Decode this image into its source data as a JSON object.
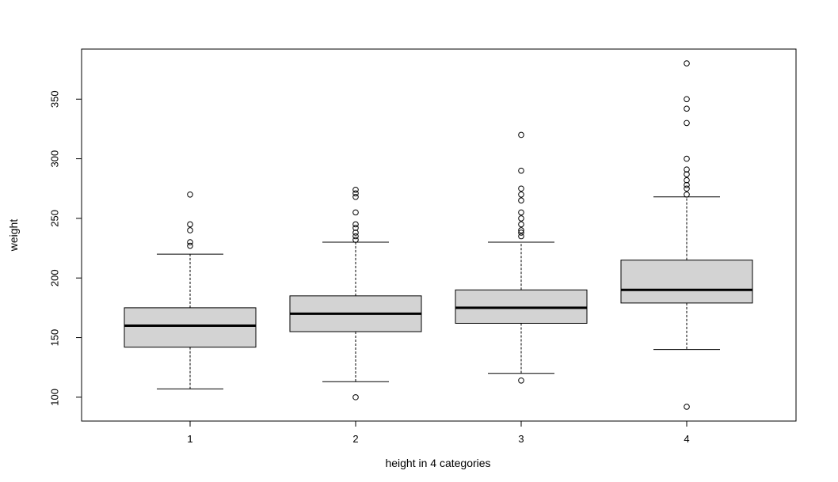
{
  "chart_data": {
    "type": "boxplot",
    "title": "",
    "xlabel": "height in 4 categories",
    "ylabel": "weight",
    "ylim": [
      80,
      392
    ],
    "y_ticks": [
      100,
      150,
      200,
      250,
      300,
      350
    ],
    "grid": false,
    "legend": "none",
    "box_fill": "#d3d3d3",
    "line_color": "#000000",
    "categories": [
      "1",
      "2",
      "3",
      "4"
    ],
    "boxes": [
      {
        "category": "1",
        "whisker_low": 107,
        "q1": 142,
        "median": 160,
        "q3": 175,
        "whisker_high": 220,
        "outliers": [
          227,
          230,
          240,
          245,
          270
        ]
      },
      {
        "category": "2",
        "whisker_low": 113,
        "q1": 155,
        "median": 170,
        "q3": 185,
        "whisker_high": 230,
        "outliers": [
          100,
          232,
          235,
          238,
          242,
          245,
          255,
          268,
          271,
          274
        ]
      },
      {
        "category": "3",
        "whisker_low": 120,
        "q1": 162,
        "median": 175,
        "q3": 190,
        "whisker_high": 230,
        "outliers": [
          114,
          235,
          238,
          240,
          245,
          250,
          255,
          265,
          270,
          275,
          290,
          320
        ]
      },
      {
        "category": "4",
        "whisker_low": 140,
        "q1": 179,
        "median": 190,
        "q3": 215,
        "whisker_high": 268,
        "outliers": [
          92,
          270,
          275,
          278,
          282,
          287,
          291,
          300,
          330,
          342,
          350,
          380
        ]
      }
    ]
  }
}
